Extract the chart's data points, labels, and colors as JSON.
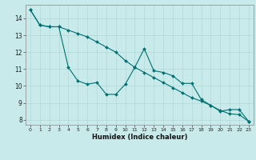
{
  "title": "",
  "xlabel": "Humidex (Indice chaleur)",
  "ylabel": "",
  "background_color": "#c8eaeb",
  "grid_color": "#b0d8d8",
  "line_color": "#007070",
  "ylim": [
    7.7,
    14.8
  ],
  "xlim": [
    -0.5,
    23.5
  ],
  "yticks": [
    8,
    9,
    10,
    11,
    12,
    13,
    14
  ],
  "xticks": [
    0,
    1,
    2,
    3,
    4,
    5,
    6,
    7,
    8,
    9,
    10,
    11,
    12,
    13,
    14,
    15,
    16,
    17,
    18,
    19,
    20,
    21,
    22,
    23
  ],
  "series1_x": [
    0,
    1,
    2,
    3,
    4,
    5,
    6,
    7,
    8,
    9,
    10,
    11,
    12,
    13,
    14,
    15,
    16,
    17,
    18,
    19,
    20,
    21,
    22,
    23
  ],
  "series1_y": [
    14.5,
    13.6,
    13.5,
    13.5,
    11.1,
    10.3,
    10.1,
    10.2,
    9.5,
    9.5,
    10.1,
    11.1,
    12.2,
    10.9,
    10.8,
    10.6,
    10.15,
    10.15,
    9.2,
    8.85,
    8.5,
    8.6,
    8.6,
    7.9
  ],
  "series2_x": [
    0,
    1,
    2,
    3,
    4,
    5,
    6,
    7,
    8,
    9,
    10,
    11,
    12,
    13,
    14,
    15,
    16,
    17,
    18,
    19,
    20,
    21,
    22,
    23
  ],
  "series2_y": [
    14.5,
    13.6,
    13.5,
    13.5,
    13.3,
    13.1,
    12.9,
    12.6,
    12.3,
    12.0,
    11.5,
    11.1,
    10.8,
    10.5,
    10.2,
    9.9,
    9.6,
    9.3,
    9.1,
    8.85,
    8.55,
    8.35,
    8.3,
    7.9
  ]
}
